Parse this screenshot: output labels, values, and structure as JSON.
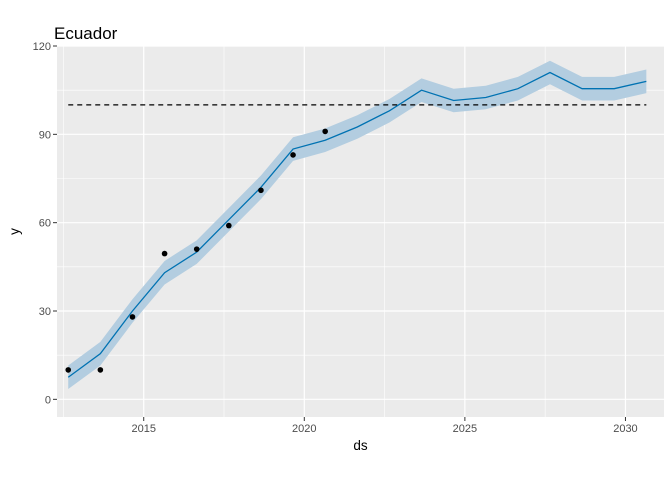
{
  "chart_data": {
    "type": "line",
    "title": "Ecuador",
    "xlabel": "ds",
    "ylabel": "y",
    "xlim": [
      2012.3,
      2031.2
    ],
    "ylim": [
      -6,
      120
    ],
    "x_ticks": [
      2015,
      2020,
      2025,
      2030
    ],
    "x_tick_labels": [
      "2015",
      "2020",
      "2025",
      "2030"
    ],
    "y_ticks": [
      0,
      30,
      60,
      90,
      120
    ],
    "y_tick_labels": [
      "0",
      "30",
      "60",
      "90",
      "120"
    ],
    "grid": true,
    "panel_background": "#ebebeb",
    "colors": {
      "forecast_line": "#0072b2",
      "interval_band": "#b3cde0",
      "points": "#000000",
      "cap_line": "#000000"
    },
    "cap": 100,
    "observed": {
      "x": [
        2012.65,
        2013.65,
        2014.65,
        2015.65,
        2016.65,
        2017.65,
        2018.65,
        2019.65,
        2020.65
      ],
      "y": [
        10,
        10,
        28,
        49.5,
        51,
        59,
        71,
        83,
        91
      ]
    },
    "forecast": {
      "x": [
        2012.65,
        2013.65,
        2014.65,
        2015.65,
        2016.65,
        2017.65,
        2018.65,
        2019.65,
        2020.65,
        2021.65,
        2022.65,
        2023.65,
        2024.65,
        2025.65,
        2026.65,
        2027.65,
        2028.65,
        2029.65,
        2030.65
      ],
      "yhat": [
        7.5,
        15.5,
        30,
        43,
        50,
        61,
        72,
        85,
        88,
        92.5,
        98,
        105,
        101.5,
        102.5,
        105.5,
        111,
        105.5,
        105.5,
        108
      ],
      "lower": [
        3.5,
        11.5,
        26,
        39,
        46,
        57,
        68,
        81,
        84,
        88.5,
        94,
        101,
        97.5,
        98.5,
        101.5,
        107,
        101.5,
        101.5,
        104
      ],
      "upper": [
        11.5,
        19.5,
        34,
        47,
        54,
        65,
        76,
        89,
        92,
        96.5,
        102,
        109,
        105.5,
        106.5,
        109.5,
        115,
        109.5,
        109.5,
        112
      ]
    }
  }
}
